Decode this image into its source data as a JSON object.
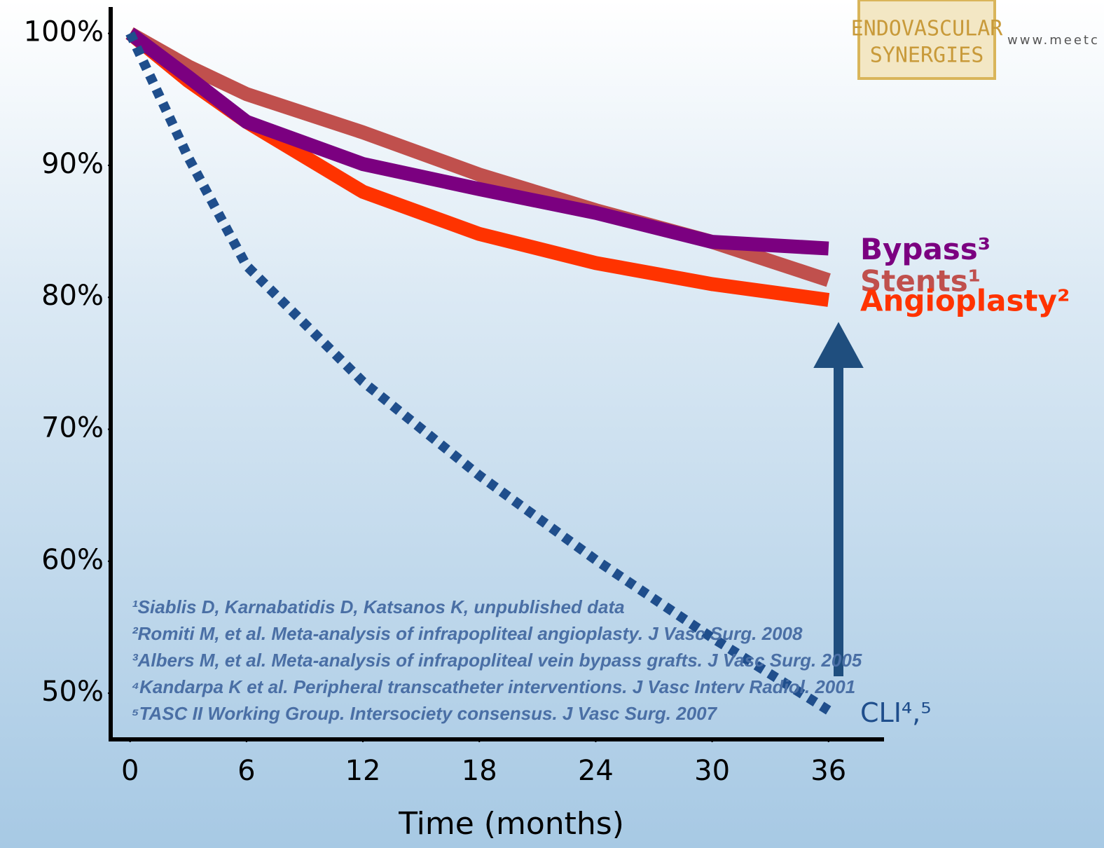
{
  "chart_data": {
    "type": "line",
    "x_label": "Time (months)",
    "x": [
      0,
      3,
      6,
      12,
      18,
      24,
      30,
      36
    ],
    "xlim": [
      -1,
      38.5
    ],
    "xticks": [
      0,
      6,
      12,
      18,
      24,
      30,
      36
    ],
    "ylim": [
      46.5,
      102
    ],
    "yticks": [
      {
        "value": 50,
        "label": "50%"
      },
      {
        "value": 60,
        "label": "60%"
      },
      {
        "value": 70,
        "label": "70%"
      },
      {
        "value": 80,
        "label": "80%"
      },
      {
        "value": 90,
        "label": "90%"
      },
      {
        "value": 100,
        "label": "100%"
      }
    ],
    "grid": false,
    "series": [
      {
        "name": "Stents¹",
        "color": "#c0504d",
        "dashed": false,
        "values": [
          100,
          97.5,
          95.4,
          92.5,
          89.3,
          86.6,
          84.2,
          81.3
        ]
      },
      {
        "name": "Angioplasty²",
        "color": "#ff3300",
        "dashed": false,
        "values": [
          100,
          96.4,
          93.3,
          88,
          84.8,
          82.6,
          81,
          79.8
        ]
      },
      {
        "name": "Bypass³",
        "color": "#7b0080",
        "dashed": false,
        "values": [
          100,
          96.7,
          93.3,
          90.1,
          88.2,
          86.4,
          84.2,
          83.7
        ]
      },
      {
        "name": "CLI⁴,⁵",
        "color": "#1f4e8c",
        "dashed": true,
        "values": [
          100,
          90.6,
          82.4,
          73.6,
          66.5,
          60.1,
          54.2,
          48.7
        ]
      }
    ],
    "footnotes": [
      "¹Siablis D, Karnabatidis D, Katsanos K, unpublished data",
      "²Romiti M, et al. Meta-analysis of infrapopliteal angioplasty. J Vasc Surg. 2008",
      "³Albers M, et al. Meta-analysis of infrapopliteal vein bypass grafts. J Vasc Surg. 2005",
      "⁴Kandarpa K et al. Peripheral transcatheter interventions. J Vasc Interv Radiol. 2001",
      "⁵TASC II Working Group. Intersociety consensus. J Vasc Surg. 2007"
    ],
    "logo_text": [
      "ENDOVASCULAR",
      "SYNERGIES"
    ],
    "website": "www.meetc"
  }
}
